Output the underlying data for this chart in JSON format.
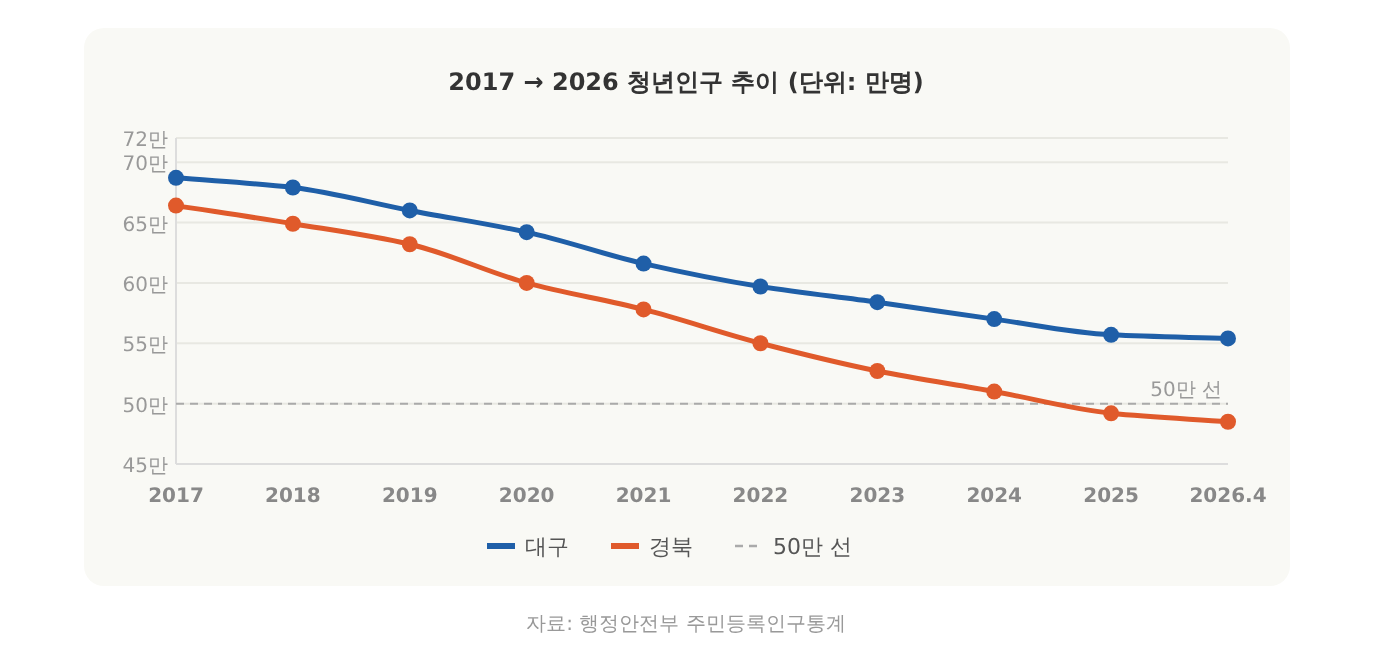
{
  "chart_data": {
    "type": "line",
    "title": "2017 → 2026 청년인구 추이 (단위: 만명)",
    "categories": [
      "2017",
      "2018",
      "2019",
      "2020",
      "2021",
      "2022",
      "2023",
      "2024",
      "2025",
      "2026.4"
    ],
    "series": [
      {
        "name": "대구",
        "color": "#1f5fa8",
        "values": [
          68.7,
          67.9,
          66.0,
          64.2,
          61.6,
          59.7,
          58.4,
          57.0,
          55.7,
          55.4
        ]
      },
      {
        "name": "경북",
        "color": "#e05a2b",
        "values": [
          66.4,
          64.9,
          63.2,
          60.0,
          57.8,
          55.0,
          52.7,
          51.0,
          49.2,
          48.5
        ]
      }
    ],
    "ylim": [
      45,
      72
    ],
    "yticks": [
      {
        "value": 45,
        "label": "45만"
      },
      {
        "value": 50,
        "label": "50만"
      },
      {
        "value": 55,
        "label": "55만"
      },
      {
        "value": 60,
        "label": "60만"
      },
      {
        "value": 65,
        "label": "65만"
      },
      {
        "value": 70,
        "label": "70만"
      },
      {
        "value": 72,
        "label": "72만"
      }
    ],
    "grid": "y",
    "marker": "circle",
    "line_style": "solid",
    "legend": "bottom",
    "ref_lines": [
      {
        "axis": "y",
        "value": 50,
        "label": "50만 선",
        "color": "#aaaaaa",
        "line_style": "dashed"
      }
    ],
    "annotations": [
      "자료: 행정안전부 주민등록인구통계"
    ]
  }
}
